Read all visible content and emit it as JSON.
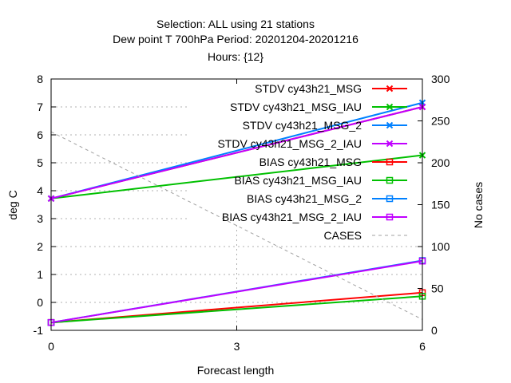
{
  "chart_data": {
    "type": "line",
    "title_lines": [
      "Selection: ALL using    21 stations",
      "Dew point T 700hPa   Period: 20201204-20201216",
      "Hours: {12}"
    ],
    "xlabel": "Forecast length",
    "ylabel": "deg C",
    "y2label": "No cases",
    "x_ticks": [
      "0",
      "3",
      "6"
    ],
    "y_ticks": [
      "-1",
      "0",
      "1",
      "2",
      "3",
      "4",
      "5",
      "6",
      "7",
      "8"
    ],
    "y2_ticks": [
      "0",
      "50",
      "100",
      "150",
      "200",
      "250",
      "300"
    ],
    "xlim": [
      0,
      6
    ],
    "ylim": [
      -1,
      8
    ],
    "y2lim": [
      0,
      300
    ],
    "grid": true,
    "legend_position": "top-right",
    "series": [
      {
        "name": "STDV cy43h21_MSG",
        "color": "#ff0000",
        "marker": "x",
        "axis": "y",
        "x": [
          0,
          6
        ],
        "values": [
          3.72,
          7.0
        ]
      },
      {
        "name": "STDV cy43h21_MSG_IAU",
        "color": "#00c000",
        "marker": "x",
        "axis": "y",
        "x": [
          0,
          6
        ],
        "values": [
          3.72,
          5.27
        ]
      },
      {
        "name": "STDV cy43h21_MSG_2",
        "color": "#0080ff",
        "marker": "x",
        "axis": "y",
        "x": [
          0,
          6
        ],
        "values": [
          3.72,
          7.15
        ]
      },
      {
        "name": "STDV cy43h21_MSG_2_IAU",
        "color": "#c000ff",
        "marker": "x",
        "axis": "y",
        "x": [
          0,
          6
        ],
        "values": [
          3.72,
          7.0
        ]
      },
      {
        "name": "BIAS cy43h21_MSG",
        "color": "#ff0000",
        "marker": "square",
        "axis": "y",
        "x": [
          0,
          6
        ],
        "values": [
          -0.72,
          0.35
        ]
      },
      {
        "name": "BIAS cy43h21_MSG_IAU",
        "color": "#00c000",
        "marker": "square",
        "axis": "y",
        "x": [
          0,
          6
        ],
        "values": [
          -0.72,
          0.22
        ]
      },
      {
        "name": "BIAS cy43h21_MSG_2",
        "color": "#0080ff",
        "marker": "square",
        "axis": "y",
        "x": [
          0,
          6
        ],
        "values": [
          -0.72,
          1.5
        ]
      },
      {
        "name": "BIAS cy43h21_MSG_2_IAU",
        "color": "#c000ff",
        "marker": "square",
        "axis": "y",
        "x": [
          0,
          6
        ],
        "values": [
          -0.72,
          1.48
        ]
      },
      {
        "name": "CASES",
        "color": "#a0a0a0",
        "marker": "none",
        "dashed": true,
        "axis": "y2",
        "x": [
          0,
          6
        ],
        "values": [
          237,
          13
        ]
      }
    ]
  }
}
